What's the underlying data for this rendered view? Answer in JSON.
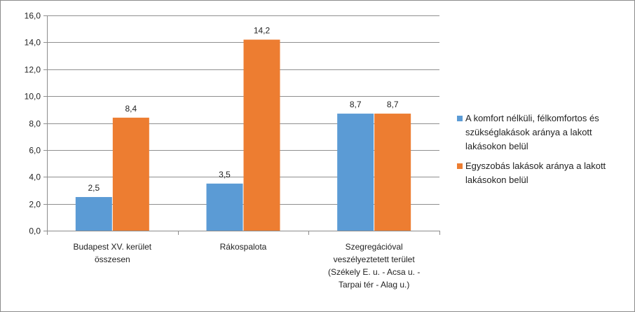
{
  "chart_data": {
    "type": "bar",
    "title": "",
    "xlabel": "",
    "ylabel": "",
    "categories": [
      [
        "Budapest XV. kerület",
        "összesen"
      ],
      [
        "Rákospalota"
      ],
      [
        "Szegregációval",
        "veszélyeztetett terület",
        "(Székely E. u. - Acsa u. -",
        "Tarpai tér - Alag u.)"
      ]
    ],
    "series": [
      {
        "name": "A komfort nélküli, félkomfortos és szükséglakások aránya a lakott lakásokon belül",
        "name_lines": [
          "A komfort nélküli, félkomfortos és",
          "szükséglakások aránya a lakott",
          "lakásokon belül"
        ],
        "values": [
          2.5,
          3.5,
          8.7
        ],
        "value_labels": [
          "2,5",
          "3,5",
          "8,7"
        ],
        "color": "#5b9bd5"
      },
      {
        "name": "Egyszobás lakások aránya a lakott lakásokon belül",
        "name_lines": [
          "Egyszobás lakások aránya a lakott",
          "lakásokon belül"
        ],
        "values": [
          8.4,
          14.2,
          8.7
        ],
        "value_labels": [
          "8,4",
          "14,2",
          "8,7"
        ],
        "color": "#ed7d31"
      }
    ],
    "ylim": [
      0,
      16
    ],
    "yticks": [
      0,
      2,
      4,
      6,
      8,
      10,
      12,
      14,
      16
    ],
    "ytick_labels": [
      "0,0",
      "2,0",
      "4,0",
      "6,0",
      "8,0",
      "10,0",
      "12,0",
      "14,0",
      "16,0"
    ],
    "grid": true,
    "legend_position": "right"
  }
}
